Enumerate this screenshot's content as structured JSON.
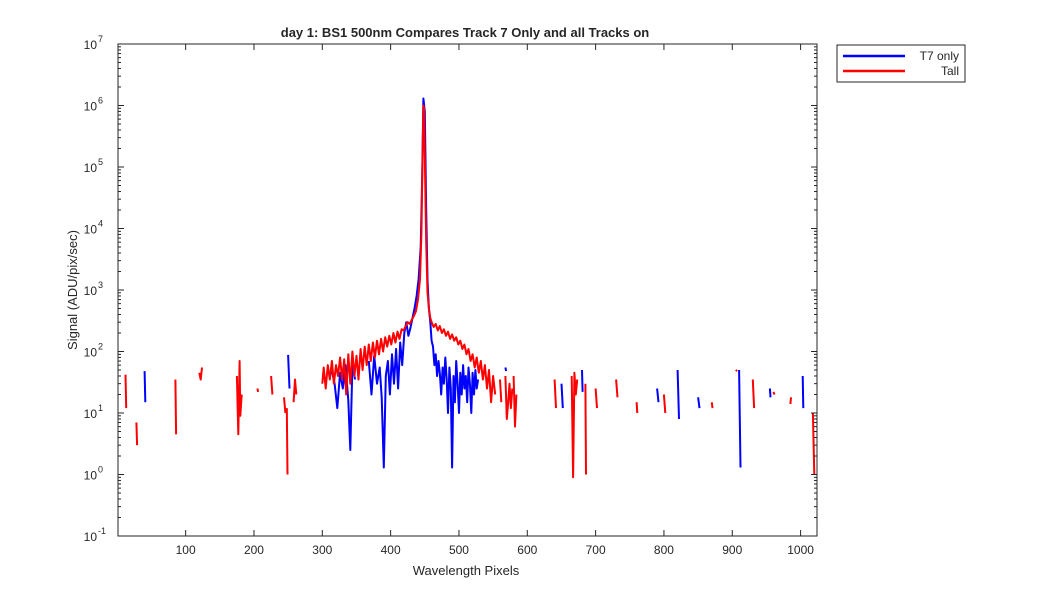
{
  "chart_data": {
    "type": "line",
    "title": "day 1: BS1  500nm  Compares Track 7 Only and all Tracks on",
    "xlabel": "Wavelength Pixels",
    "ylabel": "Signal (ADU/pix/sec)",
    "xlim": [
      1,
      1024
    ],
    "ylim": [
      0.1,
      10000000
    ],
    "yscale": "log",
    "x_ticks": [
      100,
      200,
      300,
      400,
      500,
      600,
      700,
      800,
      900,
      1000
    ],
    "y_ticks": [
      {
        "base": "10",
        "exp": "-1"
      },
      {
        "base": "10",
        "exp": "0"
      },
      {
        "base": "10",
        "exp": "1"
      },
      {
        "base": "10",
        "exp": "2"
      },
      {
        "base": "10",
        "exp": "3"
      },
      {
        "base": "10",
        "exp": "4"
      },
      {
        "base": "10",
        "exp": "5"
      },
      {
        "base": "10",
        "exp": "6"
      },
      {
        "base": "10",
        "exp": "7"
      }
    ],
    "grid": false,
    "legend_position": "outside-top-right",
    "series": [
      {
        "name": "T7 only",
        "color": "#0000ff",
        "segments": [
          [
            [
              40,
              48
            ],
            [
              41,
              15
            ]
          ],
          [
            [
              250,
              88
            ],
            [
              252,
              25
            ]
          ],
          [
            [
              313,
              55
            ],
            [
              318,
              30
            ],
            [
              322,
              12
            ],
            [
              326,
              45
            ],
            [
              330,
              25
            ],
            [
              334,
              60
            ],
            [
              338,
              16
            ],
            [
              341,
              2.5
            ],
            [
              344,
              60
            ],
            [
              348,
              35
            ]
          ],
          [
            [
              368,
              70
            ],
            [
              372,
              20
            ],
            [
              376,
              85
            ],
            [
              380,
              30
            ],
            [
              384,
              55
            ],
            [
              387,
              18
            ],
            [
              390,
              1.3
            ],
            [
              393,
              40
            ],
            [
              396,
              70
            ],
            [
              399,
              20
            ],
            [
              402,
              90
            ],
            [
              405,
              30
            ],
            [
              408,
              110
            ],
            [
              411,
              25
            ],
            [
              414,
              140
            ],
            [
              417,
              60
            ],
            [
              420,
              200
            ],
            [
              423,
              300
            ],
            [
              426,
              180
            ],
            [
              429,
              240
            ],
            [
              432,
              350
            ],
            [
              435,
              500
            ],
            [
              438,
              800
            ],
            [
              441,
              1500
            ],
            [
              444,
              5000
            ],
            [
              446,
              60000
            ],
            [
              448,
              1300000
            ],
            [
              450,
              800000
            ],
            [
              452,
              20000
            ],
            [
              454,
              1500
            ],
            [
              456,
              500
            ],
            [
              458,
              300
            ],
            [
              460,
              150
            ],
            [
              462,
              120
            ],
            [
              464,
              60
            ],
            [
              466,
              90
            ],
            [
              468,
              40
            ],
            [
              470,
              70
            ],
            [
              472,
              45
            ],
            [
              474,
              20
            ],
            [
              476,
              55
            ],
            [
              478,
              30
            ],
            [
              480,
              80
            ],
            [
              482,
              35
            ],
            [
              484,
              10
            ],
            [
              486,
              55
            ],
            [
              488,
              25
            ],
            [
              490,
              1.3
            ],
            [
              492,
              40
            ],
            [
              494,
              15
            ],
            [
              496,
              70
            ],
            [
              498,
              30
            ],
            [
              500,
              10
            ],
            [
              502,
              45
            ],
            [
              504,
              20
            ],
            [
              506,
              60
            ],
            [
              508,
              25
            ],
            [
              510,
              40
            ],
            [
              512,
              15
            ],
            [
              514,
              55
            ],
            [
              516,
              30
            ],
            [
              518,
              10
            ],
            [
              520,
              45
            ],
            [
              522,
              20
            ],
            [
              524,
              50
            ],
            [
              526,
              25
            ],
            [
              528,
              35
            ]
          ],
          [
            [
              568,
              55
            ],
            [
              569,
              48
            ]
          ],
          [
            [
              650,
              30
            ],
            [
              652,
              12
            ]
          ],
          [
            [
              680,
              50
            ],
            [
              681,
              22
            ]
          ],
          [
            [
              790,
              25
            ],
            [
              792,
              15
            ]
          ],
          [
            [
              820,
              50
            ],
            [
              822,
              8
            ]
          ],
          [
            [
              850,
              18
            ],
            [
              852,
              12
            ]
          ],
          [
            [
              910,
              50
            ],
            [
              912,
              1.3
            ]
          ],
          [
            [
              955,
              25
            ],
            [
              956,
              18
            ]
          ],
          [
            [
              1003,
              40
            ],
            [
              1004,
              12
            ]
          ]
        ]
      },
      {
        "name": "Tall",
        "color": "#ff0000",
        "segments": [
          [
            [
              12,
              42
            ],
            [
              13,
              12
            ]
          ],
          [
            [
              28,
              7
            ],
            [
              29,
              3
            ]
          ],
          [
            [
              85,
              35
            ],
            [
              86,
              4.5
            ]
          ],
          [
            [
              120,
              45
            ],
            [
              122,
              35
            ],
            [
              124,
              55
            ]
          ],
          [
            [
              175,
              40
            ],
            [
              177,
              4.5
            ],
            [
              179,
              70
            ],
            [
              180,
              9
            ],
            [
              182,
              20
            ]
          ],
          [
            [
              205,
              25
            ],
            [
              206,
              22
            ]
          ],
          [
            [
              225,
              40
            ],
            [
              227,
              20
            ]
          ],
          [
            [
              244,
              18
            ],
            [
              246,
              10
            ]
          ],
          [
            [
              248,
              12
            ],
            [
              249,
              1
            ]
          ],
          [
            [
              258,
              15
            ],
            [
              260,
              35
            ],
            [
              262,
              20
            ]
          ],
          [
            [
              300,
              30
            ],
            [
              302,
              55
            ],
            [
              305,
              25
            ],
            [
              308,
              60
            ],
            [
              311,
              35
            ],
            [
              314,
              70
            ],
            [
              317,
              30
            ],
            [
              320,
              60
            ],
            [
              323,
              40
            ],
            [
              326,
              80
            ],
            [
              329,
              35
            ],
            [
              332,
              75
            ],
            [
              335,
              20
            ],
            [
              338,
              90
            ],
            [
              341,
              30
            ],
            [
              344,
              100
            ],
            [
              347,
              40
            ],
            [
              350,
              85
            ],
            [
              353,
              35
            ],
            [
              356,
              110
            ],
            [
              359,
              50
            ],
            [
              362,
              120
            ],
            [
              365,
              60
            ],
            [
              368,
              130
            ],
            [
              371,
              70
            ],
            [
              374,
              140
            ],
            [
              377,
              80
            ],
            [
              380,
              150
            ],
            [
              383,
              90
            ],
            [
              386,
              160
            ],
            [
              389,
              100
            ],
            [
              392,
              170
            ],
            [
              395,
              120
            ],
            [
              398,
              180
            ],
            [
              401,
              130
            ],
            [
              404,
              200
            ],
            [
              407,
              140
            ],
            [
              410,
              210
            ],
            [
              413,
              160
            ],
            [
              416,
              230
            ],
            [
              419,
              220
            ],
            [
              422,
              260
            ],
            [
              425,
              300
            ],
            [
              428,
              280
            ],
            [
              431,
              330
            ],
            [
              434,
              380
            ],
            [
              437,
              450
            ],
            [
              440,
              700
            ],
            [
              443,
              1500
            ],
            [
              445,
              8000
            ],
            [
              447,
              200000
            ],
            [
              448,
              1000000
            ],
            [
              449,
              900000
            ],
            [
              450,
              150000
            ],
            [
              452,
              6000
            ],
            [
              454,
              900
            ],
            [
              456,
              500
            ],
            [
              458,
              350
            ],
            [
              460,
              300
            ],
            [
              463,
              250
            ],
            [
              466,
              280
            ],
            [
              469,
              220
            ],
            [
              472,
              260
            ],
            [
              475,
              200
            ],
            [
              478,
              230
            ],
            [
              481,
              180
            ],
            [
              484,
              210
            ],
            [
              487,
              160
            ],
            [
              490,
              190
            ],
            [
              493,
              150
            ],
            [
              496,
              170
            ],
            [
              499,
              130
            ],
            [
              502,
              150
            ],
            [
              505,
              110
            ],
            [
              508,
              130
            ],
            [
              511,
              90
            ],
            [
              514,
              110
            ],
            [
              517,
              70
            ],
            [
              520,
              90
            ],
            [
              523,
              55
            ],
            [
              526,
              80
            ],
            [
              529,
              45
            ],
            [
              532,
              70
            ],
            [
              535,
              35
            ],
            [
              538,
              60
            ],
            [
              541,
              25
            ],
            [
              544,
              50
            ],
            [
              547,
              15
            ],
            [
              550,
              40
            ],
            [
              553,
              20
            ]
          ],
          [
            [
              560,
              35
            ],
            [
              562,
              15
            ]
          ],
          [
            [
              568,
              40
            ],
            [
              570,
              8
            ],
            [
              572,
              15
            ],
            [
              574,
              30
            ],
            [
              576,
              12
            ],
            [
              578,
              25
            ]
          ],
          [
            [
              580,
              40
            ],
            [
              582,
              6
            ],
            [
              584,
              20
            ]
          ],
          [
            [
              640,
              35
            ],
            [
              642,
              12
            ]
          ],
          [
            [
              665,
              40
            ],
            [
              667,
              0.9
            ],
            [
              669,
              45
            ],
            [
              671,
              20
            ],
            [
              673,
              35
            ]
          ],
          [
            [
              685,
              30
            ],
            [
              686,
              1
            ]
          ],
          [
            [
              700,
              25
            ],
            [
              702,
              12
            ]
          ],
          [
            [
              730,
              35
            ],
            [
              732,
              18
            ]
          ],
          [
            [
              760,
              15
            ],
            [
              761,
              10
            ]
          ],
          [
            [
              800,
              20
            ],
            [
              802,
              10
            ]
          ],
          [
            [
              870,
              15
            ],
            [
              871,
              12
            ]
          ],
          [
            [
              905,
              48
            ],
            [
              907,
              50
            ]
          ],
          [
            [
              930,
              35
            ],
            [
              932,
              12
            ]
          ],
          [
            [
              960,
              22
            ],
            [
              962,
              20
            ]
          ],
          [
            [
              985,
              14
            ],
            [
              986,
              18
            ]
          ],
          [
            [
              1018,
              10
            ],
            [
              1020,
              1
            ]
          ]
        ]
      }
    ]
  }
}
